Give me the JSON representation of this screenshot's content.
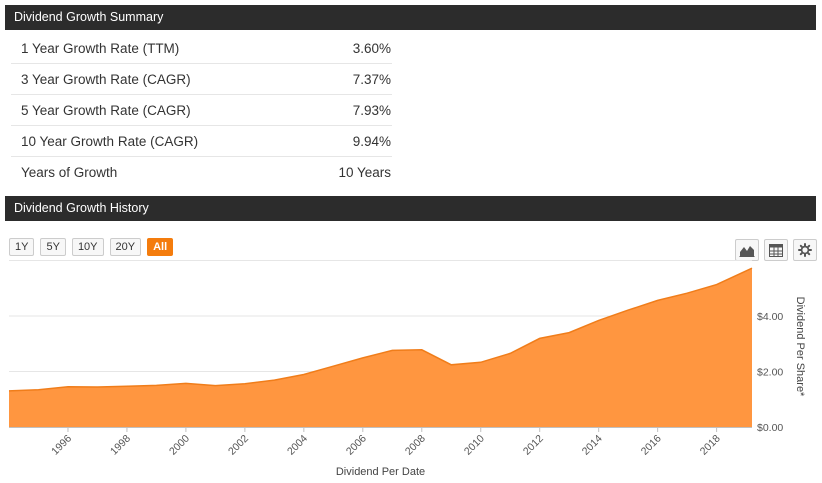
{
  "summary": {
    "title": "Dividend Growth Summary",
    "rows": [
      {
        "label": "1 Year Growth Rate (TTM)",
        "value": "3.60%"
      },
      {
        "label": "3 Year Growth Rate (CAGR)",
        "value": "7.37%"
      },
      {
        "label": "5 Year Growth Rate (CAGR)",
        "value": "7.93%"
      },
      {
        "label": "10 Year Growth Rate (CAGR)",
        "value": "9.94%"
      },
      {
        "label": "Years of Growth",
        "value": "10 Years"
      }
    ]
  },
  "history": {
    "title": "Dividend Growth History",
    "range_buttons": [
      "1Y",
      "5Y",
      "10Y",
      "20Y",
      "All"
    ],
    "active_range": "All",
    "tools": [
      {
        "name": "area-chart-icon"
      },
      {
        "name": "table-icon"
      },
      {
        "name": "gear-icon"
      }
    ]
  },
  "chart_data": {
    "type": "area",
    "xlabel": "Dividend Per Date",
    "ylabel": "Dividend Per Share*",
    "xlim": [
      1994,
      2019.2
    ],
    "ylim": [
      0,
      5.8
    ],
    "x_ticks": [
      "1996",
      "1998",
      "2000",
      "2002",
      "2004",
      "2006",
      "2008",
      "2010",
      "2012",
      "2014",
      "2016",
      "2018"
    ],
    "y_ticks": [
      "$0.00",
      "$2.00",
      "$4.00"
    ],
    "y_tick_values": [
      0,
      2,
      4
    ],
    "fill_color": "#ff9640",
    "line_color": "#f07d1a",
    "x": [
      1994,
      1995,
      1996,
      1997,
      1998,
      1999,
      2000,
      2001,
      2002,
      2003,
      2004,
      2005,
      2006,
      2007,
      2008,
      2009,
      2010,
      2011,
      2012,
      2013,
      2014,
      2015,
      2016,
      2017,
      2018,
      2019.2
    ],
    "values": [
      1.3,
      1.34,
      1.45,
      1.44,
      1.47,
      1.5,
      1.57,
      1.49,
      1.56,
      1.69,
      1.89,
      2.19,
      2.49,
      2.76,
      2.78,
      2.24,
      2.33,
      2.65,
      3.19,
      3.4,
      3.84,
      4.21,
      4.56,
      4.82,
      5.13,
      5.72
    ]
  }
}
